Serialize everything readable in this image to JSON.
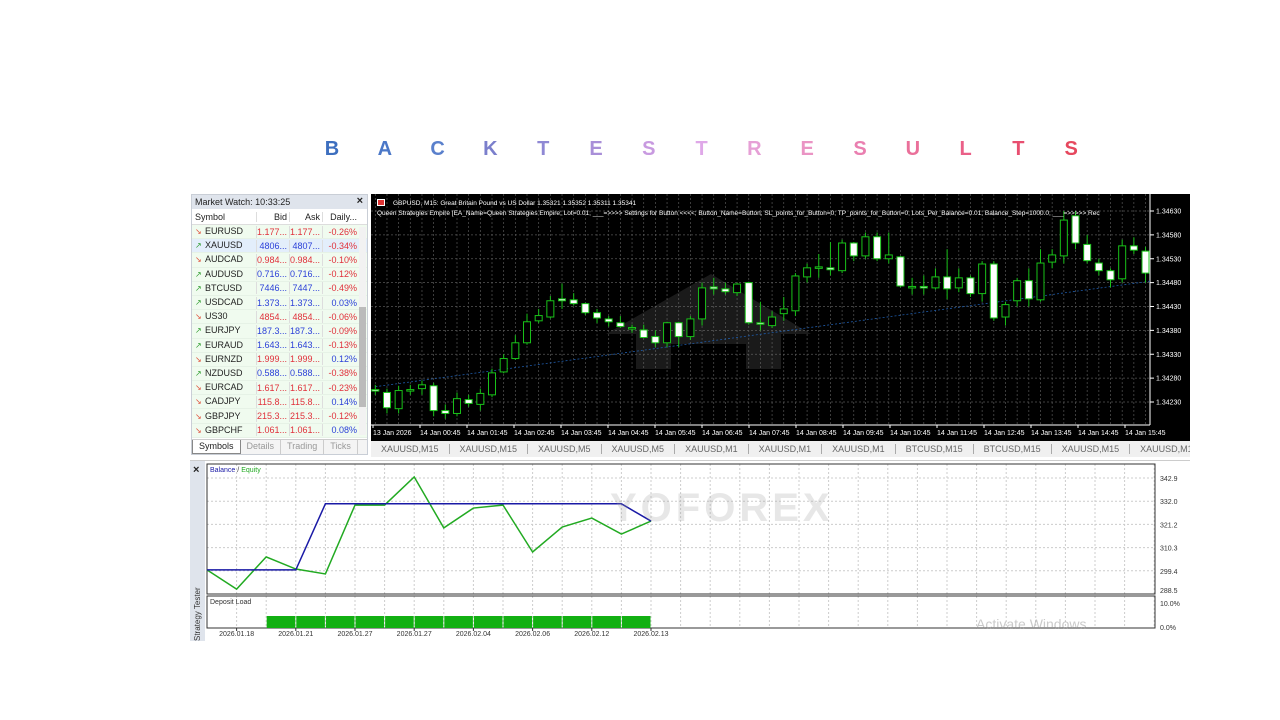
{
  "title_letters": [
    {
      "ch": "B",
      "color": "#3d6fbf"
    },
    {
      "ch": "A",
      "color": "#4b78c8"
    },
    {
      "ch": "C",
      "color": "#5a80cc"
    },
    {
      "ch": "K",
      "color": "#7b7fcc"
    },
    {
      "ch": "T",
      "color": "#8f88d4"
    },
    {
      "ch": "E",
      "color": "#a98fd8"
    },
    {
      "ch": "S",
      "color": "#c89ae0"
    },
    {
      "ch": "T",
      "color": "#dfa8e8"
    },
    {
      "ch": "R",
      "color": "#e6a0d6"
    },
    {
      "ch": "E",
      "color": "#ea94c4"
    },
    {
      "ch": "S",
      "color": "#ea7fb0"
    },
    {
      "ch": "U",
      "color": "#ea709a"
    },
    {
      "ch": "L",
      "color": "#ea6088"
    },
    {
      "ch": "T",
      "color": "#e84f70"
    },
    {
      "ch": "S",
      "color": "#e6485e"
    }
  ],
  "market_watch": {
    "title": "Market Watch: 10:33:25",
    "close": "×",
    "columns": [
      "Symbol",
      "Bid",
      "Ask",
      "Daily..."
    ],
    "rows": [
      {
        "symbol": "EURUSD",
        "bid": "1.177...",
        "ask": "1.177...",
        "daily": "-0.26%",
        "dir": "down"
      },
      {
        "symbol": "XAUUSD",
        "bid": "4806...",
        "ask": "4807...",
        "daily": "-0.34%",
        "dir": "up",
        "selected": true
      },
      {
        "symbol": "AUDCAD",
        "bid": "0.984...",
        "ask": "0.984...",
        "daily": "-0.10%",
        "dir": "down"
      },
      {
        "symbol": "AUDUSD",
        "bid": "0.716...",
        "ask": "0.716...",
        "daily": "-0.12%",
        "dir": "up"
      },
      {
        "symbol": "BTCUSD",
        "bid": "7446...",
        "ask": "7447...",
        "daily": "-0.49%",
        "dir": "up"
      },
      {
        "symbol": "USDCAD",
        "bid": "1.373...",
        "ask": "1.373...",
        "daily": "0.03%",
        "dir": "up"
      },
      {
        "symbol": "US30",
        "bid": "4854...",
        "ask": "4854...",
        "daily": "-0.06%",
        "dir": "down"
      },
      {
        "symbol": "EURJPY",
        "bid": "187.3...",
        "ask": "187.3...",
        "daily": "-0.09%",
        "dir": "up"
      },
      {
        "symbol": "EURAUD",
        "bid": "1.643...",
        "ask": "1.643...",
        "daily": "-0.13%",
        "dir": "up"
      },
      {
        "symbol": "EURNZD",
        "bid": "1.999...",
        "ask": "1.999...",
        "daily": "0.12%",
        "dir": "down"
      },
      {
        "symbol": "NZDUSD",
        "bid": "0.588...",
        "ask": "0.588...",
        "daily": "-0.38%",
        "dir": "up"
      },
      {
        "symbol": "EURCAD",
        "bid": "1.617...",
        "ask": "1.617...",
        "daily": "-0.23%",
        "dir": "down"
      },
      {
        "symbol": "CADJPY",
        "bid": "115.8...",
        "ask": "115.8...",
        "daily": "0.14%",
        "dir": "down"
      },
      {
        "symbol": "GBPJPY",
        "bid": "215.3...",
        "ask": "215.3...",
        "daily": "-0.12%",
        "dir": "down"
      },
      {
        "symbol": "GBPCHF",
        "bid": "1.061...",
        "ask": "1.061...",
        "daily": "0.08%",
        "dir": "down"
      }
    ],
    "tabs": [
      "Symbols",
      "Details",
      "Trading",
      "Ticks"
    ],
    "up_color": "#2a3fd8",
    "down_color": "#e0303a"
  },
  "price_chart": {
    "header": "GBPUSD, M15:  Great Britain Pound vs US Dollar  1.35321 1.35352 1.35311 1.35341",
    "ea_line": "Queen Strategies Empire [EA_Name=Queen Strategies Empire; Lot=0.01; ___=>>>> Settings for Button <<<<; Button_Name=Button; SL_points_for_Button=0; TP_points_for_Button=0; Lots_Per_Balance=0.01; Balance_Step=1000.0; ___=>>>>> Rec",
    "price_labels": [
      "1.34630",
      "1.34580",
      "1.34530",
      "1.34480",
      "1.34430",
      "1.34380",
      "1.34330",
      "1.34280",
      "1.34230"
    ],
    "time_labels": [
      "13 Jan 2026",
      "14 Jan 00:45",
      "14 Jan 01:45",
      "14 Jan 02:45",
      "14 Jan 03:45",
      "14 Jan 04:45",
      "14 Jan 05:45",
      "14 Jan 06:45",
      "14 Jan 07:45",
      "14 Jan 08:45",
      "14 Jan 09:45",
      "14 Jan 10:45",
      "14 Jan 11:45",
      "14 Jan 12:45",
      "14 Jan 13:45",
      "14 Jan 14:45",
      "14 Jan 15:45"
    ],
    "bull_color": "#19c219",
    "bear_body_color": "#ffffff",
    "candles_ohlc": [
      [
        1.34256,
        1.34266,
        1.34245,
        1.34254
      ],
      [
        1.3425,
        1.34258,
        1.34206,
        1.34218
      ],
      [
        1.34216,
        1.34264,
        1.34206,
        1.34254
      ],
      [
        1.34254,
        1.34266,
        1.34245,
        1.34256
      ],
      [
        1.34258,
        1.34275,
        1.34245,
        1.34266
      ],
      [
        1.34264,
        1.3427,
        1.342,
        1.34212
      ],
      [
        1.34212,
        1.34225,
        1.34195,
        1.34206
      ],
      [
        1.34206,
        1.3425,
        1.342,
        1.34237
      ],
      [
        1.34235,
        1.34245,
        1.3422,
        1.34227
      ],
      [
        1.34225,
        1.34258,
        1.34212,
        1.34248
      ],
      [
        1.34245,
        1.343,
        1.3424,
        1.34291
      ],
      [
        1.34293,
        1.3433,
        1.3429,
        1.34321
      ],
      [
        1.34321,
        1.3437,
        1.34318,
        1.34354
      ],
      [
        1.34354,
        1.34415,
        1.3435,
        1.34398
      ],
      [
        1.344,
        1.34425,
        1.34395,
        1.34411
      ],
      [
        1.34408,
        1.34452,
        1.34405,
        1.34442
      ],
      [
        1.34446,
        1.34478,
        1.34425,
        1.34442
      ],
      [
        1.34444,
        1.34458,
        1.34432,
        1.34436
      ],
      [
        1.34436,
        1.34438,
        1.34412,
        1.34417
      ],
      [
        1.34417,
        1.34425,
        1.34395,
        1.34406
      ],
      [
        1.34404,
        1.3441,
        1.34388,
        1.34398
      ],
      [
        1.34396,
        1.3441,
        1.34385,
        1.34388
      ],
      [
        1.34385,
        1.34392,
        1.34375,
        1.34386
      ],
      [
        1.34381,
        1.34392,
        1.34365,
        1.34365
      ],
      [
        1.34367,
        1.3438,
        1.34345,
        1.34354
      ],
      [
        1.34354,
        1.34398,
        1.34345,
        1.34396
      ],
      [
        1.34396,
        1.34398,
        1.34345,
        1.34367
      ],
      [
        1.34367,
        1.3441,
        1.3436,
        1.34404
      ],
      [
        1.34404,
        1.3448,
        1.3439,
        1.34469
      ],
      [
        1.34471,
        1.3449,
        1.34455,
        1.34467
      ],
      [
        1.34467,
        1.3448,
        1.34455,
        1.34461
      ],
      [
        1.34459,
        1.3448,
        1.34452,
        1.34477
      ],
      [
        1.3448,
        1.34482,
        1.34392,
        1.34396
      ],
      [
        1.34396,
        1.3444,
        1.3438,
        1.34394
      ],
      [
        1.3439,
        1.3442,
        1.34385,
        1.34408
      ],
      [
        1.34415,
        1.3445,
        1.344,
        1.34425
      ],
      [
        1.34421,
        1.345,
        1.3441,
        1.34494
      ],
      [
        1.34492,
        1.3452,
        1.3448,
        1.34511
      ],
      [
        1.34513,
        1.3454,
        1.3449,
        1.34513
      ],
      [
        1.34511,
        1.34565,
        1.34495,
        1.34507
      ],
      [
        1.34505,
        1.3457,
        1.345,
        1.34563
      ],
      [
        1.34563,
        1.34565,
        1.34525,
        1.34536
      ],
      [
        1.34536,
        1.34585,
        1.3453,
        1.34576
      ],
      [
        1.34576,
        1.34585,
        1.34525,
        1.3453
      ],
      [
        1.3453,
        1.34585,
        1.3452,
        1.34538
      ],
      [
        1.34534,
        1.34536,
        1.3447,
        1.34473
      ],
      [
        1.34471,
        1.3449,
        1.34455,
        1.34472
      ],
      [
        1.34472,
        1.34495,
        1.34455,
        1.34471
      ],
      [
        1.34469,
        1.3451,
        1.34465,
        1.34492
      ],
      [
        1.34492,
        1.3455,
        1.34445,
        1.34467
      ],
      [
        1.34469,
        1.3451,
        1.3446,
        1.3449
      ],
      [
        1.3449,
        1.34495,
        1.3445,
        1.34457
      ],
      [
        1.34457,
        1.34525,
        1.3444,
        1.34519
      ],
      [
        1.34519,
        1.34525,
        1.344,
        1.34406
      ],
      [
        1.34408,
        1.3444,
        1.3439,
        1.34434
      ],
      [
        1.34442,
        1.3449,
        1.3443,
        1.34484
      ],
      [
        1.34484,
        1.3451,
        1.3443,
        1.34446
      ],
      [
        1.34444,
        1.3455,
        1.3444,
        1.34521
      ],
      [
        1.34523,
        1.3455,
        1.3451,
        1.34538
      ],
      [
        1.34536,
        1.3463,
        1.3452,
        1.34611
      ],
      [
        1.3462,
        1.3463,
        1.3455,
        1.34563
      ],
      [
        1.3456,
        1.3458,
        1.3452,
        1.34526
      ],
      [
        1.34521,
        1.3453,
        1.34495,
        1.34505
      ],
      [
        1.34505,
        1.3451,
        1.3447,
        1.34486
      ],
      [
        1.34488,
        1.3457,
        1.3448,
        1.34557
      ],
      [
        1.34557,
        1.34575,
        1.3454,
        1.34548
      ],
      [
        1.34546,
        1.34555,
        1.3448,
        1.345
      ]
    ],
    "trendline": {
      "start": 1.34262,
      "end": 1.34483,
      "color": "#1e5aa8"
    }
  },
  "chart_tabs": [
    "XAUUSD,M15",
    "XAUUSD,M15",
    "XAUUSD,M5",
    "XAUUSD,M5",
    "XAUUSD,M1",
    "XAUUSD,M1",
    "XAUUSD,M1",
    "BTCUSD,M15",
    "BTCUSD,M15",
    "XAUUSD,M15",
    "XAUUSD,M15",
    "XAUUSD,I"
  ],
  "tester": {
    "close": "×",
    "side_label": "Strategy Tester",
    "legend_balance": "Balance",
    "legend_sep": "/",
    "legend_equity": "Equity",
    "deposit_label": "Deposit Load",
    "balance_color": "#1a1aa6",
    "equity_color": "#22aa22",
    "y_labels": [
      "342.9",
      "332.0",
      "321.2",
      "310.3",
      "299.4",
      "288.5"
    ],
    "ylim": [
      288.5,
      342.9
    ],
    "load_labels": [
      "10.0%",
      "0.0%"
    ],
    "date_labels": [
      "2026.01.18",
      "2026.01.21",
      "2026.01.27",
      "2026.01.27",
      "2026.02.04",
      "2026.02.06",
      "2026.02.12",
      "2026.02.13"
    ],
    "balance": [
      299.8,
      299.8,
      299.8,
      299.8,
      330.8,
      330.8,
      330.8,
      330.8,
      330.8,
      330.8,
      330.8,
      330.8,
      330.8,
      330.8,
      330.8,
      322.7
    ],
    "equity": [
      299.8,
      290.8,
      305.9,
      300.2,
      297.9,
      330.2,
      330.2,
      343.4,
      319.5,
      328.8,
      330.2,
      308.2,
      319.9,
      324.1,
      316.6,
      322.7
    ],
    "deposit_load_pct": [
      0,
      0,
      4,
      4,
      4,
      4,
      4,
      4,
      4,
      4,
      4,
      4,
      4,
      4,
      4,
      0
    ]
  },
  "watermark": "YOFOREX",
  "os_notice": "Activate Windows"
}
